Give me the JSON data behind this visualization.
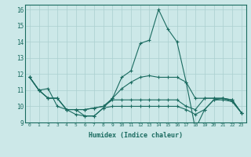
{
  "xlabel": "Humidex (Indice chaleur)",
  "ylabel": "",
  "xlim": [
    -0.5,
    23.5
  ],
  "ylim": [
    9.0,
    16.3
  ],
  "yticks": [
    9,
    10,
    11,
    12,
    13,
    14,
    15,
    16
  ],
  "xticks": [
    0,
    1,
    2,
    3,
    4,
    5,
    6,
    7,
    8,
    9,
    10,
    11,
    12,
    13,
    14,
    15,
    16,
    17,
    18,
    19,
    20,
    21,
    22,
    23
  ],
  "background_color": "#cce8e8",
  "grid_color": "#aacfcf",
  "line_color": "#1a6b60",
  "curves": [
    [
      11.8,
      11.0,
      11.1,
      10.0,
      9.8,
      9.5,
      9.4,
      9.4,
      9.9,
      10.5,
      11.8,
      12.2,
      13.9,
      14.1,
      16.0,
      14.8,
      14.0,
      11.5,
      8.6,
      9.8,
      10.4,
      10.4,
      10.3,
      9.6
    ],
    [
      11.8,
      11.0,
      10.5,
      10.5,
      9.8,
      9.8,
      9.8,
      9.9,
      10.0,
      10.5,
      11.1,
      11.5,
      11.8,
      11.9,
      11.8,
      11.8,
      11.8,
      11.5,
      10.5,
      10.5,
      10.5,
      10.5,
      10.4,
      9.6
    ],
    [
      11.8,
      11.0,
      10.5,
      10.5,
      9.8,
      9.8,
      9.8,
      9.9,
      10.0,
      10.4,
      10.4,
      10.4,
      10.4,
      10.4,
      10.4,
      10.4,
      10.4,
      10.0,
      9.8,
      10.5,
      10.5,
      10.5,
      10.4,
      9.6
    ],
    [
      11.8,
      11.0,
      10.5,
      10.5,
      9.8,
      9.8,
      9.4,
      9.4,
      9.9,
      10.0,
      10.0,
      10.0,
      10.0,
      10.0,
      10.0,
      10.0,
      10.0,
      9.8,
      9.5,
      9.8,
      10.4,
      10.5,
      10.3,
      9.6
    ]
  ]
}
